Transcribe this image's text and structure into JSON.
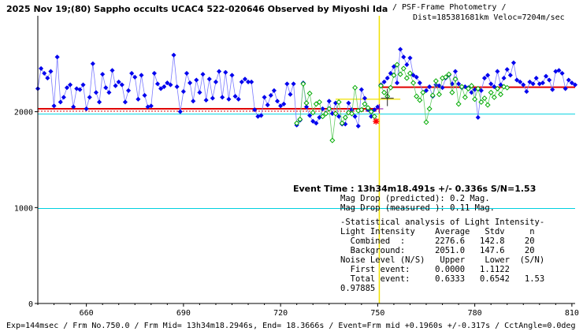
{
  "title": "2025 Nov 19;(80) Sappho occults UCAC4 522-020646 Observed by Miyoshi Ida",
  "subtitle_line1": "/ PSF-Frame Photometry /",
  "subtitle_line2": "Dist=185381681km Veloc=7204m/sec",
  "chart_data": {
    "type": "line",
    "xlim": [
      645,
      811
    ],
    "ylim": [
      0,
      3000
    ],
    "x_ticks": [
      660,
      690,
      720,
      750,
      780,
      810
    ],
    "y_ticks": [
      0,
      1000,
      2000
    ],
    "grid": false,
    "event_frame": 750.5,
    "levels": {
      "combined_before": 2030,
      "combined_after": 2255,
      "cyan_upper": 1975,
      "cyan_lower": 990
    },
    "series": [
      {
        "color": "#0000ee",
        "x": [
          645,
          646,
          647,
          648,
          649,
          650,
          651,
          652,
          653,
          654,
          655,
          656,
          657,
          658,
          659,
          660,
          661,
          662,
          663,
          664,
          665,
          666,
          667,
          668,
          669,
          670,
          671,
          672,
          673,
          674,
          675,
          676,
          677,
          678,
          679,
          680,
          681,
          682,
          683,
          684,
          685,
          686,
          687,
          688,
          689,
          690,
          691,
          692,
          693,
          694,
          695,
          696,
          697,
          698,
          699,
          700,
          701,
          702,
          703,
          704,
          705,
          706,
          707,
          708,
          709,
          710,
          711,
          712,
          713,
          714,
          715,
          716,
          717,
          718,
          719,
          720
        ],
        "y": [
          2240,
          2450,
          2400,
          2350,
          2420,
          2060,
          2570,
          2100,
          2150,
          2250,
          2280,
          2050,
          2240,
          2230,
          2280,
          2030,
          2150,
          2500,
          2200,
          2100,
          2390,
          2250,
          2200,
          2430,
          2270,
          2310,
          2280,
          2100,
          2220,
          2400,
          2360,
          2130,
          2380,
          2170,
          2050,
          2060,
          2400,
          2290,
          2240,
          2260,
          2300,
          2280,
          2590,
          2260,
          2000,
          2210,
          2400,
          2300,
          2110,
          2330,
          2200,
          2390,
          2120,
          2340,
          2140,
          2310,
          2420,
          2150,
          2410,
          2130,
          2380,
          2160,
          2130,
          2310,
          2340,
          2310,
          2310,
          2020,
          1950,
          1960,
          2150,
          2070,
          2170,
          2220,
          2110,
          2060
        ]
      },
      {
        "color": "#0000ee",
        "x": [
          721,
          722,
          723,
          724,
          725,
          726,
          727,
          728,
          729,
          730,
          731,
          732,
          733,
          734,
          735,
          736,
          737,
          738,
          739,
          740,
          741,
          742,
          743,
          744,
          745,
          746,
          747,
          748,
          749,
          750
        ],
        "y": [
          2080,
          2290,
          2180,
          2290,
          1860,
          1910,
          2300,
          2050,
          1960,
          1900,
          1880,
          1940,
          2030,
          1980,
          2110,
          1980,
          2090,
          1950,
          1870,
          1870,
          2090,
          2020,
          1950,
          1850,
          2230,
          2140,
          2020,
          1950,
          2020,
          2050
        ]
      },
      {
        "color": "#00aa00",
        "x": [
          725,
          726,
          727,
          728,
          729,
          730,
          731,
          732,
          733,
          734,
          735,
          736,
          737,
          738,
          739,
          740,
          741,
          742,
          743,
          744,
          745,
          746,
          747,
          748,
          749
        ],
        "y": [
          1880,
          1920,
          2290,
          2090,
          2190,
          1990,
          2080,
          2100,
          1950,
          1980,
          2030,
          1700,
          1980,
          2100,
          1880,
          1940,
          1990,
          1980,
          2250,
          2010,
          2020,
          2080,
          2040,
          2000,
          1950
        ]
      },
      {
        "color": "#0000ee",
        "x": [
          751,
          752,
          753,
          754,
          755,
          756,
          757,
          758,
          759,
          760,
          761,
          762,
          763,
          764,
          765,
          766,
          767,
          768,
          769,
          770,
          771,
          772,
          773,
          774,
          775,
          776,
          777,
          778,
          779,
          780,
          781,
          782,
          783,
          784,
          785,
          786,
          787,
          788,
          789,
          790,
          791,
          792,
          793,
          794,
          795,
          796,
          797,
          798,
          799,
          800,
          801,
          802,
          803,
          804,
          805,
          806,
          807,
          808,
          809,
          810,
          811
        ],
        "y": [
          2280,
          2310,
          2350,
          2400,
          2470,
          2300,
          2650,
          2570,
          2490,
          2560,
          2380,
          2360,
          2300,
          2200,
          2220,
          2260,
          2160,
          2280,
          2270,
          2250,
          2350,
          2380,
          2290,
          2420,
          2290,
          2250,
          2260,
          2250,
          2200,
          2230,
          1940,
          2220,
          2350,
          2380,
          2290,
          2260,
          2420,
          2280,
          2350,
          2440,
          2380,
          2510,
          2330,
          2310,
          2280,
          2210,
          2310,
          2290,
          2350,
          2290,
          2300,
          2370,
          2330,
          2230,
          2420,
          2430,
          2400,
          2240,
          2330,
          2300,
          2280
        ]
      },
      {
        "color": "#00aa00",
        "x": [
          751,
          752,
          753,
          754,
          755,
          756,
          757,
          758,
          759,
          760,
          761,
          762,
          763,
          764,
          765,
          766,
          767,
          768,
          769,
          770,
          771,
          772,
          773,
          774,
          775,
          776,
          777,
          778,
          779,
          780,
          781,
          782,
          783,
          784,
          785,
          786,
          787,
          788,
          789,
          790
        ],
        "y": [
          2270,
          2200,
          2160,
          2250,
          2380,
          2490,
          2390,
          2450,
          2350,
          2400,
          2300,
          2160,
          2120,
          2200,
          1890,
          2030,
          2170,
          2320,
          2180,
          2350,
          2360,
          2390,
          2200,
          2340,
          2080,
          2260,
          2150,
          2240,
          2270,
          2130,
          2240,
          2100,
          2140,
          2070,
          2200,
          2150,
          2240,
          2180,
          2260,
          2250
        ]
      }
    ],
    "annotations": {
      "event_time": "Event Time : 13h34m18.491s  +/- 0.336s  S/N=1.53",
      "mag_pred": "Mag Drop (predicted):  0.2   Mag.",
      "mag_meas": "Mag Drop (measured ):  0.11  Mag.",
      "stat_title": "-Statistical analysis of Light Intensity-",
      "stat_header": "Light Intensity    Average   Stdv     n",
      "stat_combined": "  Combined  :      2276.6   142.8    20",
      "stat_background": "  Background:      2051.0   147.6    20",
      "noise_header": "Noise Level (N/S)   Upper    Lower  (S/N)",
      "noise_first": "  First event:     0.0000   1.1122",
      "noise_total": "  Total event:     0.6333   0.6542   1.53",
      "side_value": "0.97885"
    }
  },
  "footer": "Exp=144msec / Frm No.750.0 / Frm Mid= 13h34m18.2946s,  End= 18.3666s / Event=Frm mid +0.1960s +/-0.317s / CctAngle=0.0deg"
}
